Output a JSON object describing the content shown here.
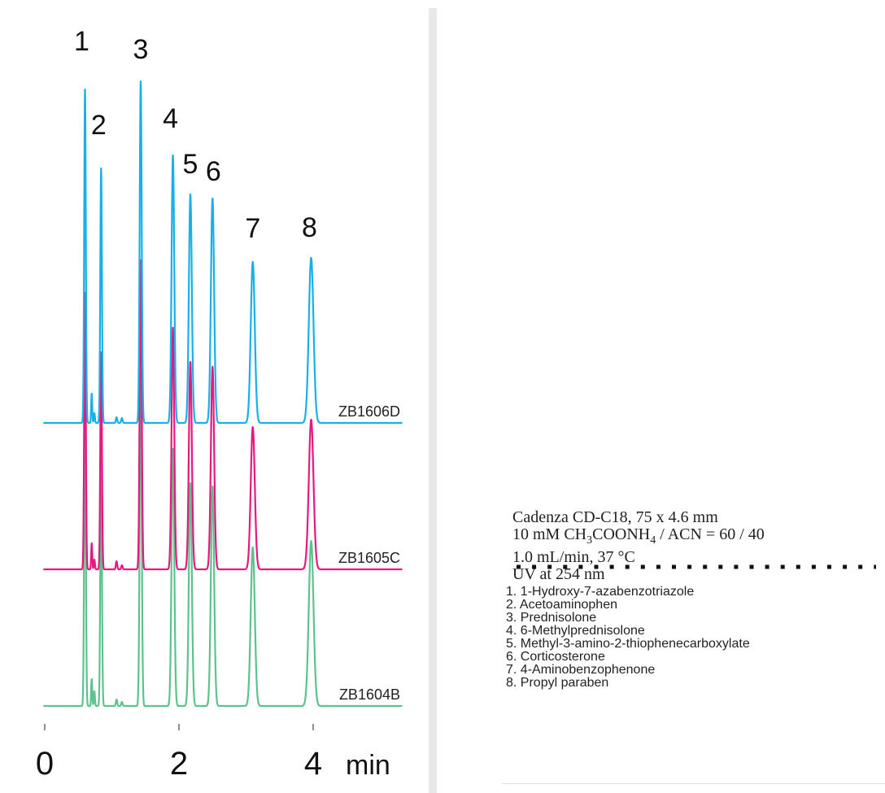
{
  "chart_data": {
    "type": "line",
    "xlabel": "min",
    "xticks": [
      0,
      2,
      4
    ],
    "xlim": [
      0,
      5.3
    ],
    "peaks": [
      {
        "label": "1",
        "time": 0.6,
        "width": 0.012
      },
      {
        "label": "2",
        "time": 0.84,
        "width": 0.012
      },
      {
        "label": "3",
        "time": 1.43,
        "width": 0.015
      },
      {
        "label": "4",
        "time": 1.91,
        "width": 0.02
      },
      {
        "label": "5",
        "time": 2.17,
        "width": 0.022
      },
      {
        "label": "6",
        "time": 2.5,
        "width": 0.024
      },
      {
        "label": "7",
        "time": 3.1,
        "width": 0.03
      },
      {
        "label": "8",
        "time": 3.97,
        "width": 0.035
      }
    ],
    "series": [
      {
        "name": "ZB1606D",
        "color": "#1aafe6",
        "heights": [
          410,
          313,
          420,
          329,
          281,
          276,
          198,
          203
        ],
        "minor": [
          [
            0.7,
            36,
            0.008
          ],
          [
            0.74,
            12,
            0.008
          ],
          [
            1.07,
            7,
            0.01
          ],
          [
            1.15,
            6,
            0.01
          ]
        ]
      },
      {
        "name": "ZB1605C",
        "color": "#e6197f",
        "heights": [
          340,
          267,
          380,
          297,
          255,
          249,
          175,
          184
        ],
        "minor": [
          [
            0.7,
            32,
            0.008
          ],
          [
            0.74,
            12,
            0.008
          ],
          [
            1.07,
            10,
            0.01
          ],
          [
            1.15,
            5,
            0.01
          ]
        ]
      },
      {
        "name": "ZB1604B",
        "color": "#5cc28e",
        "heights": [
          390,
          302,
          410,
          316,
          274,
          270,
          195,
          203
        ],
        "minor": [
          [
            0.7,
            33,
            0.008
          ],
          [
            0.74,
            18,
            0.008
          ],
          [
            1.07,
            8,
            0.01
          ],
          [
            1.15,
            5,
            0.01
          ]
        ]
      }
    ]
  },
  "conditions": {
    "line1": "Cadenza CD-C18, 75 x 4.6 mm",
    "line2_pre": "10 mM CH",
    "line2_sub1": "3",
    "line2_mid": "COONH",
    "line2_sub2": "4",
    "line2_post": " / ACN = 60 / 40",
    "line3": "1.0 mL/min, 37 °C",
    "line4": "UV at 254 nm"
  },
  "compounds": [
    "1. 1-Hydroxy-7-azabenzotriazole",
    "2. Acetoaminophen",
    "3. Prednisolone",
    "4. 6-Methylprednisolone",
    "5. Methyl-3-amino-2-thiophenecarboxylate",
    "6. Corticosterone",
    "7. 4-Aminobenzophenone",
    "8. Propyl paraben"
  ]
}
